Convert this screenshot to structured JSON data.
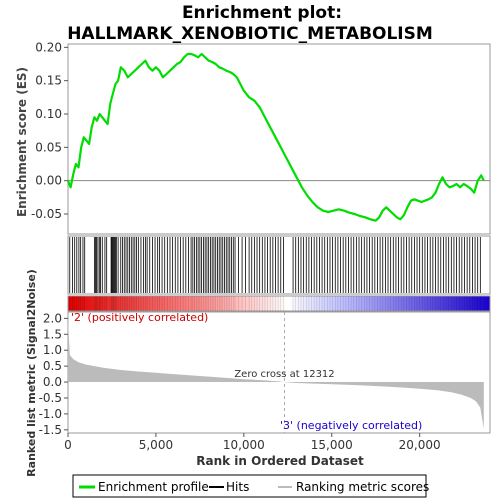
{
  "chart_data": {
    "type": "line",
    "title_line1": "Enrichment plot:",
    "title_line2": "HALLMARK_XENOBIOTIC_METABOLISM",
    "es_panel": {
      "ylabel": "Enrichment score (ES)",
      "ylim": [
        -0.08,
        0.205
      ],
      "yticks": [
        "0.20",
        "0.15",
        "0.10",
        "0.05",
        "0.00",
        "-0.05"
      ],
      "ytick_values": [
        0.2,
        0.15,
        0.1,
        0.05,
        0.0,
        -0.05
      ],
      "series_color": "#00dd00",
      "x": [
        0,
        150,
        300,
        450,
        600,
        750,
        900,
        1050,
        1200,
        1350,
        1500,
        1650,
        1800,
        1950,
        2100,
        2250,
        2400,
        2550,
        2700,
        2850,
        3000,
        3200,
        3400,
        3600,
        3800,
        4000,
        4200,
        4400,
        4600,
        4800,
        5000,
        5200,
        5400,
        5600,
        5800,
        6000,
        6200,
        6400,
        6600,
        6800,
        7000,
        7200,
        7400,
        7600,
        7800,
        8000,
        8200,
        8400,
        8600,
        8800,
        9000,
        9200,
        9400,
        9600,
        9800,
        10000,
        10300,
        10600,
        10900,
        11200,
        11500,
        11800,
        12100,
        12400,
        12700,
        13000,
        13300,
        13600,
        13900,
        14200,
        14500,
        14800,
        15100,
        15400,
        15700,
        16000,
        16300,
        16600,
        16900,
        17200,
        17500,
        17700,
        17900,
        18100,
        18300,
        18500,
        18700,
        18900,
        19100,
        19300,
        19500,
        19700,
        19900,
        20100,
        20300,
        20500,
        20700,
        20900,
        21100,
        21300,
        21500,
        21700,
        21900,
        22100,
        22300,
        22500,
        22700,
        22900,
        23100,
        23300,
        23500,
        23650
      ],
      "y": [
        0.0,
        -0.01,
        0.01,
        0.025,
        0.02,
        0.05,
        0.065,
        0.06,
        0.055,
        0.08,
        0.095,
        0.09,
        0.1,
        0.095,
        0.09,
        0.085,
        0.115,
        0.13,
        0.145,
        0.15,
        0.17,
        0.165,
        0.155,
        0.16,
        0.165,
        0.17,
        0.175,
        0.18,
        0.17,
        0.165,
        0.17,
        0.165,
        0.155,
        0.16,
        0.165,
        0.17,
        0.175,
        0.178,
        0.185,
        0.19,
        0.19,
        0.188,
        0.185,
        0.19,
        0.185,
        0.18,
        0.178,
        0.175,
        0.17,
        0.168,
        0.165,
        0.163,
        0.16,
        0.155,
        0.145,
        0.135,
        0.125,
        0.12,
        0.11,
        0.095,
        0.08,
        0.065,
        0.05,
        0.035,
        0.02,
        0.005,
        -0.01,
        -0.022,
        -0.032,
        -0.04,
        -0.045,
        -0.047,
        -0.045,
        -0.043,
        -0.045,
        -0.048,
        -0.05,
        -0.053,
        -0.055,
        -0.058,
        -0.06,
        -0.055,
        -0.045,
        -0.04,
        -0.045,
        -0.05,
        -0.055,
        -0.058,
        -0.052,
        -0.04,
        -0.03,
        -0.028,
        -0.03,
        -0.032,
        -0.03,
        -0.028,
        -0.025,
        -0.018,
        -0.005,
        0.005,
        -0.005,
        -0.01,
        -0.008,
        -0.005,
        -0.01,
        -0.005,
        -0.008,
        -0.012,
        -0.018,
        0.0,
        0.008,
        0.0
      ]
    },
    "hits": {
      "color": "#000000",
      "positions": [
        100,
        250,
        380,
        500,
        620,
        720,
        850,
        950,
        1500,
        1560,
        1620,
        1700,
        1780,
        1850,
        1950,
        2100,
        2200,
        2450,
        2500,
        2550,
        2600,
        2650,
        2700,
        2750,
        2850,
        3000,
        3100,
        3200,
        3300,
        3400,
        3500,
        3600,
        3700,
        3800,
        3900,
        4000,
        4150,
        4300,
        4400,
        4500,
        4650,
        4800,
        4950,
        5100,
        5200,
        5350,
        5500,
        5650,
        5800,
        5950,
        6100,
        6250,
        6400,
        6550,
        6700,
        6850,
        7000,
        7100,
        7200,
        7300,
        7400,
        7500,
        7600,
        7700,
        7800,
        7900,
        8000,
        8100,
        8200,
        8300,
        8400,
        8500,
        8600,
        8700,
        8800,
        8900,
        9000,
        9100,
        9200,
        9300,
        9400,
        9500,
        9700,
        9900,
        10100,
        10300,
        10450,
        10600,
        10750,
        10900,
        11050,
        11200,
        11350,
        11500,
        11650,
        11800,
        11950,
        12100,
        12250,
        12800,
        12950,
        13100,
        13250,
        13400,
        13550,
        13700,
        13850,
        14000,
        14150,
        14300,
        14450,
        14600,
        14750,
        14900,
        15050,
        15200,
        15350,
        15500,
        15650,
        15800,
        15950,
        16100,
        16250,
        16400,
        16550,
        16700,
        16850,
        17000,
        17150,
        17300,
        17450,
        17600,
        17750,
        17900,
        18050,
        18200,
        18350,
        18500,
        18650,
        18800,
        18950,
        19100,
        19250,
        19400,
        19550,
        19700,
        19850,
        20000,
        20150,
        20300,
        20450,
        20600,
        20750,
        20900,
        21050,
        21200,
        21350,
        21500,
        21650,
        21800,
        21950,
        22100,
        22250,
        22400,
        22550,
        22700,
        22850,
        23000,
        23150,
        23300,
        23450
      ]
    },
    "gradient_bar": {
      "colors": [
        "#e00000",
        "#ffffff",
        "#1a00cc"
      ],
      "label_pos": "'2' (positively correlated)",
      "label_neg": "'3' (negatively correlated)"
    },
    "ranked_panel": {
      "ylabel": "Ranked list metric (Signal2Noise)",
      "ylim": [
        -1.6,
        2.2
      ],
      "yticks": [
        "2.0",
        "1.5",
        "1.0",
        "0.5",
        "0.0",
        "-0.5",
        "-1.0",
        "-1.5"
      ],
      "ytick_values": [
        2.0,
        1.5,
        1.0,
        0.5,
        0.0,
        -0.5,
        -1.0,
        -1.5
      ],
      "fill_color": "#bbbbbb",
      "x": [
        0,
        100,
        300,
        600,
        1000,
        2000,
        3000,
        4000,
        5000,
        6000,
        7000,
        8000,
        9000,
        10000,
        11000,
        12000,
        12312,
        13000,
        14000,
        15000,
        16000,
        17000,
        18000,
        19000,
        20000,
        21000,
        21800,
        22400,
        22900,
        23200,
        23450,
        23550,
        23650
      ],
      "y": [
        2.0,
        0.85,
        0.72,
        0.62,
        0.55,
        0.45,
        0.38,
        0.33,
        0.29,
        0.25,
        0.21,
        0.17,
        0.13,
        0.09,
        0.06,
        0.02,
        0.0,
        -0.03,
        -0.05,
        -0.07,
        -0.09,
        -0.11,
        -0.14,
        -0.17,
        -0.21,
        -0.26,
        -0.32,
        -0.4,
        -0.5,
        -0.6,
        -0.8,
        -1.15,
        -1.45
      ],
      "zero_cross_label": "Zero cross at 12312",
      "zero_cross_x": 12312
    },
    "xaxis": {
      "xlabel": "Rank in Ordered Dataset",
      "xlim": [
        0,
        24000
      ],
      "xticks": [
        "0",
        "5,000",
        "10,000",
        "15,000",
        "20,000"
      ],
      "xtick_values": [
        0,
        5000,
        10000,
        15000,
        20000
      ]
    },
    "legend": {
      "placement": "bottom",
      "items": [
        {
          "label": "Enrichment profile",
          "color": "#00dd00"
        },
        {
          "label": "Hits",
          "color": "#000000"
        },
        {
          "label": "Ranking metric scores",
          "color": "#bbbbbb"
        }
      ]
    }
  }
}
